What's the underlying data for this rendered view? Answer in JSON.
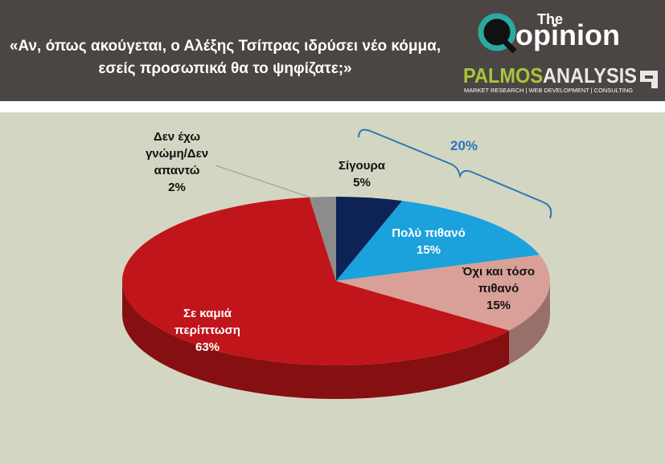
{
  "logo": {
    "small": "The",
    "big": "opinion",
    "brand_a": "PALMOS",
    "brand_b": "ANALYSIS",
    "tagline": "MARKET RESEARCH | WEB DEVELOPMENT | CONSULTING"
  },
  "chart_data": {
    "type": "pie",
    "title": "«Αν, όπως ακούγεται, ο Αλέξης Τσίπρας ιδρύσει νέο κόμμα, εσείς προσωπικά θα το ψηφίζατε;»",
    "categories": [
      "Σίγουρα",
      "Πολύ πιθανό",
      "Όχι και τόσο πιθανό",
      "Σε καμιά περίπτωση",
      "Δεν έχω γνώμη/Δεν απαντώ"
    ],
    "values": [
      5,
      15,
      15,
      63,
      2
    ],
    "value_labels": [
      "5%",
      "15%",
      "15%",
      "63%",
      "2%"
    ],
    "colors": [
      "#0d2356",
      "#1ba1dc",
      "#d9a097",
      "#c0151a",
      "#8c8c8c"
    ],
    "annotation": "20%"
  }
}
